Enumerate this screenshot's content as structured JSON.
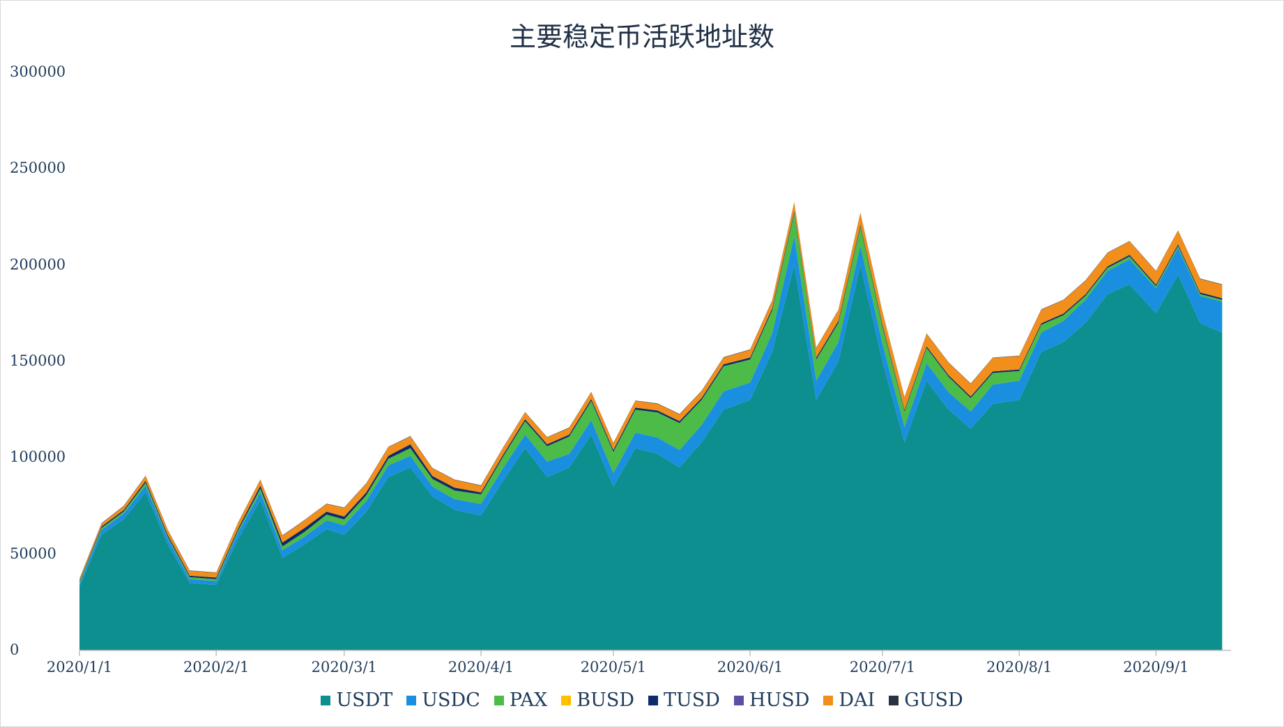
{
  "chart_data": {
    "type": "area",
    "stacked": true,
    "title": "主要稳定币活跃地址数",
    "xlabel": "",
    "ylabel": "",
    "ylim": [
      0,
      300000
    ],
    "y_ticks": [
      "0",
      "50000",
      "100000",
      "150000",
      "200000",
      "250000",
      "300000"
    ],
    "x_tick_labels": [
      "2020/1/1",
      "2020/2/1",
      "2020/3/1",
      "2020/4/1",
      "2020/5/1",
      "2020/6/1",
      "2020/7/1",
      "2020/8/1",
      "2020/9/1"
    ],
    "x": [
      "2020/1/1",
      "2020/1/6",
      "2020/1/11",
      "2020/1/16",
      "2020/1/21",
      "2020/1/26",
      "2020/2/1",
      "2020/2/6",
      "2020/2/11",
      "2020/2/16",
      "2020/2/21",
      "2020/2/26",
      "2020/3/1",
      "2020/3/6",
      "2020/3/11",
      "2020/3/16",
      "2020/3/21",
      "2020/3/26",
      "2020/4/1",
      "2020/4/6",
      "2020/4/11",
      "2020/4/16",
      "2020/4/21",
      "2020/4/26",
      "2020/5/1",
      "2020/5/6",
      "2020/5/11",
      "2020/5/16",
      "2020/5/21",
      "2020/5/26",
      "2020/6/1",
      "2020/6/6",
      "2020/6/11",
      "2020/6/16",
      "2020/6/21",
      "2020/6/26",
      "2020/7/1",
      "2020/7/6",
      "2020/7/11",
      "2020/7/16",
      "2020/7/21",
      "2020/7/26",
      "2020/8/1",
      "2020/8/6",
      "2020/8/11",
      "2020/8/16",
      "2020/8/21",
      "2020/8/26",
      "2020/9/1",
      "2020/9/6",
      "2020/9/11",
      "2020/9/16"
    ],
    "series": [
      {
        "name": "USDT",
        "color": "#0e8f8f",
        "values": [
          33000,
          60000,
          68000,
          82000,
          55000,
          35000,
          34000,
          58000,
          78000,
          48000,
          55000,
          63000,
          60000,
          72000,
          90000,
          95000,
          80000,
          73000,
          70000,
          88000,
          105000,
          90000,
          95000,
          112000,
          85000,
          105000,
          102000,
          95000,
          108000,
          125000,
          130000,
          155000,
          200000,
          130000,
          150000,
          200000,
          150000,
          108000,
          140000,
          125000,
          115000,
          128000,
          130000,
          155000,
          160000,
          170000,
          185000,
          190000,
          175000,
          195000,
          170000,
          165000
        ]
      },
      {
        "name": "USDC",
        "color": "#1a8fe0",
        "values": [
          1500,
          2500,
          3000,
          3500,
          3000,
          2000,
          2000,
          3500,
          4000,
          4000,
          4000,
          4500,
          5000,
          5500,
          6000,
          6000,
          5000,
          5500,
          6000,
          6500,
          7000,
          8000,
          7000,
          7500,
          7000,
          8000,
          8500,
          9000,
          9000,
          9500,
          9000,
          9500,
          15000,
          10000,
          10000,
          10000,
          9000,
          8000,
          9000,
          9000,
          9000,
          10000,
          10000,
          10000,
          11000,
          12000,
          12000,
          13000,
          13000,
          14000,
          14000,
          16000
        ]
      },
      {
        "name": "PAX",
        "color": "#4cbb47",
        "values": [
          1000,
          1000,
          1000,
          1500,
          1000,
          1000,
          1000,
          1000,
          2000,
          2000,
          2500,
          3000,
          3000,
          3000,
          3500,
          4000,
          4000,
          4500,
          5000,
          6000,
          7000,
          8000,
          9000,
          10000,
          11000,
          12000,
          13000,
          14000,
          13000,
          13000,
          12000,
          12000,
          12000,
          11000,
          10000,
          10000,
          9000,
          8000,
          8000,
          8000,
          7000,
          6000,
          5000,
          4000,
          3000,
          2000,
          1500,
          1500,
          1000,
          1000,
          1000,
          1000
        ]
      },
      {
        "name": "BUSD",
        "color": "#ffc000",
        "values": [
          0,
          0,
          0,
          0,
          0,
          0,
          0,
          0,
          0,
          0,
          0,
          0,
          0,
          0,
          0,
          0,
          0,
          0,
          0,
          0,
          0,
          0,
          0,
          0,
          0,
          0,
          0,
          0,
          0,
          0,
          0,
          0,
          0,
          0,
          0,
          0,
          0,
          0,
          0,
          0,
          0,
          0,
          0,
          0,
          0,
          0,
          0,
          0,
          0,
          0,
          0,
          0
        ]
      },
      {
        "name": "TUSD",
        "color": "#0d2a6b",
        "values": [
          500,
          800,
          800,
          1000,
          1000,
          800,
          800,
          1000,
          1500,
          2000,
          2000,
          1500,
          1500,
          1500,
          1500,
          2000,
          1500,
          1500,
          1000,
          1000,
          1000,
          1000,
          1000,
          1000,
          1000,
          1000,
          1000,
          1000,
          1000,
          1000,
          1000,
          1000,
          1000,
          1000,
          1000,
          1000,
          1000,
          800,
          800,
          800,
          800,
          800,
          800,
          800,
          800,
          800,
          800,
          800,
          800,
          800,
          800,
          800
        ]
      },
      {
        "name": "HUSD",
        "color": "#5b4fa5",
        "values": [
          0,
          0,
          0,
          0,
          0,
          0,
          0,
          0,
          0,
          0,
          0,
          0,
          0,
          0,
          0,
          0,
          0,
          0,
          0,
          0,
          0,
          0,
          0,
          0,
          0,
          0,
          0,
          0,
          0,
          0,
          0,
          0,
          0,
          0,
          0,
          0,
          0,
          0,
          0,
          0,
          0,
          0,
          0,
          0,
          0,
          0,
          0,
          0,
          0,
          0,
          0,
          0
        ]
      },
      {
        "name": "DAI",
        "color": "#f28e1c",
        "values": [
          1000,
          1500,
          2000,
          2500,
          2500,
          2500,
          2500,
          3000,
          3000,
          3500,
          4000,
          4000,
          4500,
          4500,
          4500,
          4000,
          4000,
          4000,
          3500,
          3500,
          3500,
          3500,
          3500,
          3500,
          3500,
          3500,
          3500,
          3500,
          3500,
          3500,
          4000,
          4000,
          4500,
          5000,
          5500,
          6000,
          6500,
          6500,
          6500,
          6500,
          6500,
          7000,
          7000,
          7000,
          7000,
          7000,
          7000,
          7000,
          7000,
          7000,
          7000,
          7000
        ]
      },
      {
        "name": "GUSD",
        "color": "#2a3342",
        "values": [
          200,
          200,
          200,
          200,
          200,
          200,
          200,
          200,
          200,
          200,
          200,
          200,
          200,
          200,
          200,
          200,
          200,
          200,
          200,
          200,
          200,
          200,
          200,
          200,
          200,
          200,
          200,
          200,
          200,
          200,
          200,
          200,
          200,
          200,
          200,
          200,
          200,
          200,
          200,
          200,
          200,
          200,
          200,
          200,
          200,
          200,
          200,
          200,
          200,
          200,
          200,
          200
        ]
      }
    ],
    "grid": false,
    "legend_position": "bottom"
  }
}
